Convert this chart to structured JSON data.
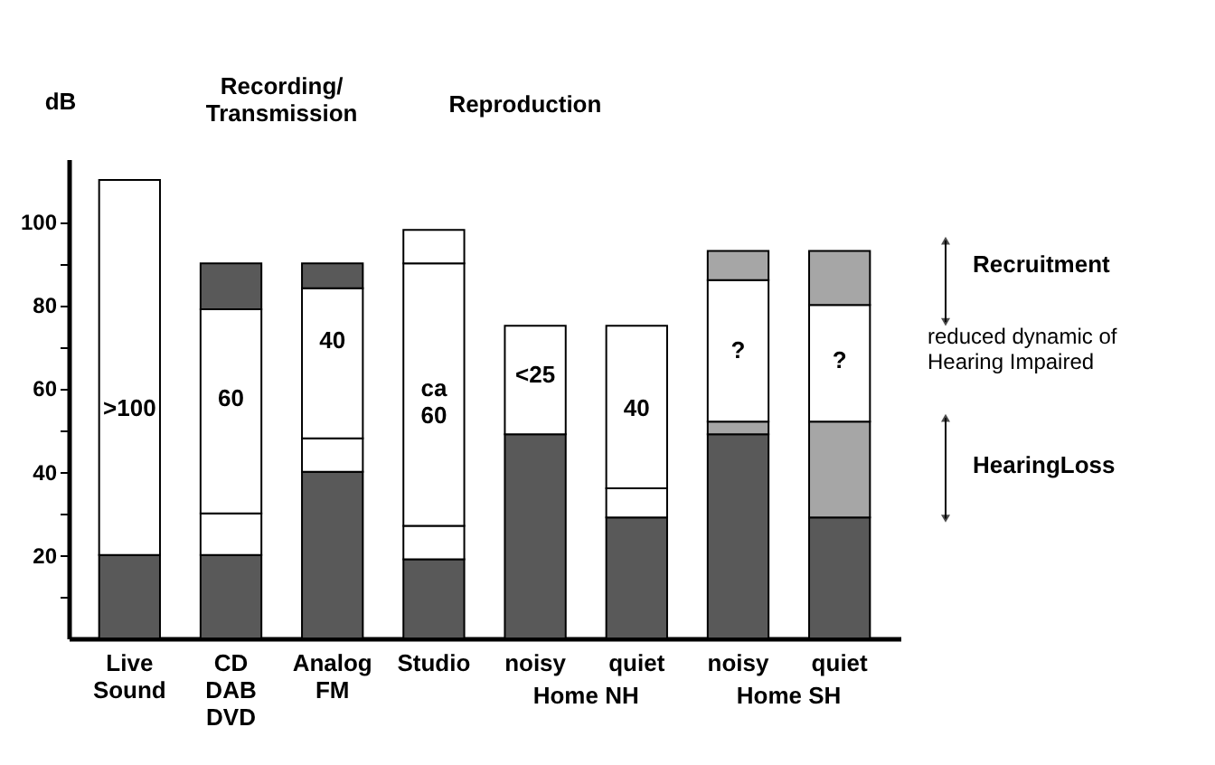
{
  "chart_data": {
    "type": "bar",
    "stacked": true,
    "ylabel": "dB",
    "categories": [
      "Live\nSound",
      "CD\nDAB\nDVD",
      "Analog\nFM",
      "Studio",
      "noisy",
      "quiet",
      "noisy",
      "quiet"
    ],
    "series": [
      {
        "values": [
          20,
          20,
          40,
          19,
          49,
          29,
          49,
          29
        ],
        "colors": [
          "#595959",
          "#595959",
          "#595959",
          "#595959",
          "#595959",
          "#595959",
          "#595959",
          "#595959"
        ]
      },
      {
        "values": [
          null,
          10,
          8,
          8,
          null,
          7,
          3,
          23
        ],
        "colors": [
          "#ffffff",
          "#ffffff",
          "#ffffff",
          "#ffffff",
          "#ffffff",
          "#ffffff",
          "#a6a6a6",
          "#a6a6a6"
        ]
      },
      {
        "values": [
          90,
          49,
          36,
          63,
          26,
          39,
          34,
          28
        ],
        "colors": [
          "#ffffff",
          "#ffffff",
          "#ffffff",
          "#ffffff",
          "#ffffff",
          "#ffffff",
          "#ffffff",
          "#ffffff"
        ]
      },
      {
        "values": [
          null,
          11,
          6,
          8,
          null,
          null,
          7,
          13
        ],
        "colors": [
          "#595959",
          "#595959",
          "#595959",
          "#ffffff",
          "#595959",
          "#595959",
          "#a6a6a6",
          "#a6a6a6"
        ]
      }
    ],
    "ylim": [
      0,
      115
    ],
    "yticks": [
      {
        "value": 10,
        "label": null
      },
      20,
      {
        "value": 30,
        "label": null
      },
      40,
      {
        "value": 50,
        "label": null
      },
      60,
      {
        "value": 70,
        "label": null
      },
      80,
      {
        "value": 90,
        "label": null
      },
      100
    ],
    "annotations": [
      "Recording/\nTransmission",
      "Reproduction",
      "Home NH",
      "Home SH",
      "Recruitment",
      "reduced dynamic of\nHearing Impaired",
      "HearingLoss",
      ">100",
      "60",
      "40",
      "ca\n60",
      "<25",
      "40",
      "?",
      "?"
    ]
  }
}
